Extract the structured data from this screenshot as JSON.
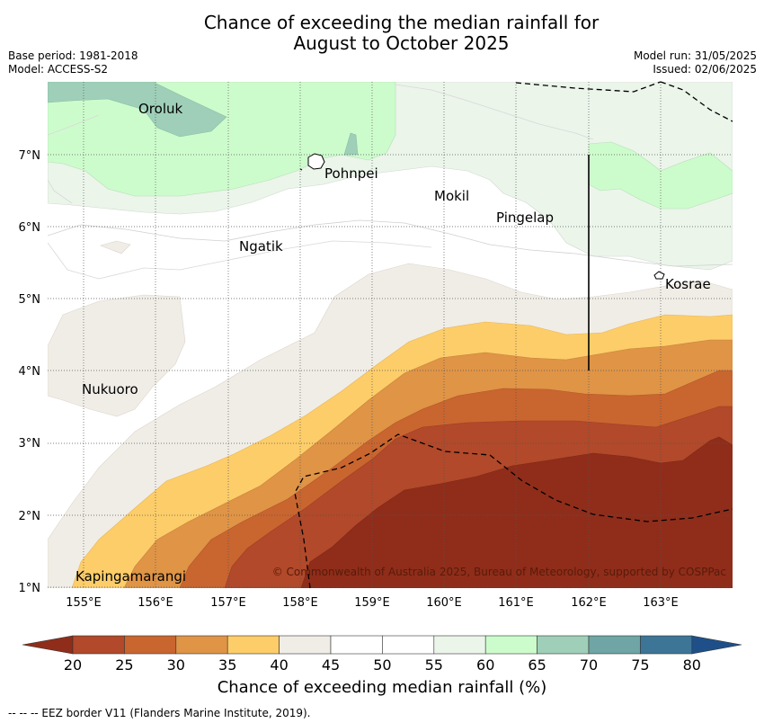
{
  "title": {
    "line1": "Chance of exceeding the median rainfall for",
    "line2": "August to October 2025"
  },
  "meta": {
    "base_period": "Base period: 1981-2018",
    "model": "Model: ACCESS-S2",
    "model_run": "Model run: 31/05/2025",
    "issued": "Issued: 02/06/2025"
  },
  "map": {
    "lon_ticks": [
      "155°E",
      "156°E",
      "157°E",
      "158°E",
      "159°E",
      "160°E",
      "161°E",
      "162°E",
      "163°E"
    ],
    "lat_ticks": [
      "1°N",
      "2°N",
      "3°N",
      "4°N",
      "5°N",
      "6°N",
      "7°N"
    ],
    "places": [
      {
        "name": "Oroluk"
      },
      {
        "name": "Pohnpei"
      },
      {
        "name": "Mokil"
      },
      {
        "name": "Pingelap"
      },
      {
        "name": "Ngatik"
      },
      {
        "name": "Kosrae"
      },
      {
        "name": "Nukuoro"
      },
      {
        "name": "Kapingamarangi"
      }
    ],
    "copyright": "© Commonwealth of Australia 2025, Bureau of Meteorology, supported by COSPPac"
  },
  "colorbar": {
    "ticks": [
      "20",
      "25",
      "30",
      "35",
      "40",
      "45",
      "50",
      "55",
      "60",
      "65",
      "70",
      "75",
      "80"
    ],
    "colors": {
      "under": "#8f2d1a",
      "20-25": "#b1492a",
      "25-30": "#c9652f",
      "30-35": "#df9446",
      "35-40": "#fccd69",
      "40-45": "#f0ede7",
      "45-50": "#ffffff",
      "50-55": "#ffffff",
      "55-60": "#ebf5ea",
      "60-65": "#cdfccc",
      "65-70": "#9fcfb8",
      "70-75": "#6fa5a5",
      "75-80": "#3d7597",
      "over": "#1f4f88"
    },
    "label": "Chance of exceeding median rainfall (%)"
  },
  "legend_note": "--  --  -- EEZ border V11 (Flanders Marine Institute, 2019)."
}
